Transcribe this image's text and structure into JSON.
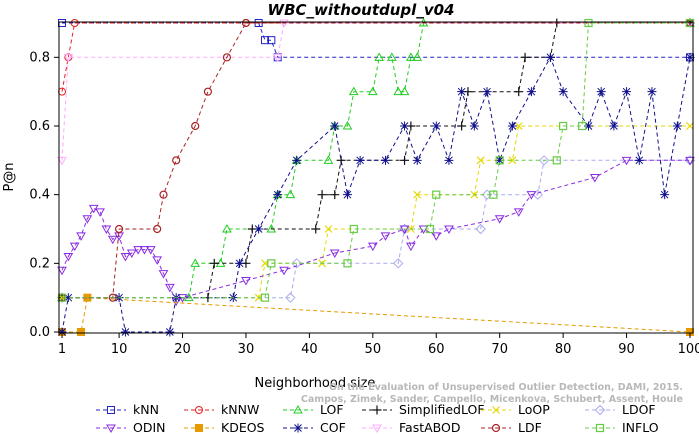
{
  "chart_data": {
    "type": "line",
    "title": "WBC_withoutdupl_v04",
    "xlabel": "Neighborhood size",
    "ylabel": "P@n",
    "xlim": [
      1,
      100
    ],
    "ylim": [
      0,
      0.9
    ],
    "xticks": [
      1,
      10,
      20,
      30,
      40,
      50,
      60,
      70,
      80,
      90,
      100
    ],
    "yticks": [
      0.0,
      0.2,
      0.4,
      0.6,
      0.8
    ],
    "ytick_labels": [
      "0.0",
      "0.2",
      "0.4",
      "0.6",
      "0.8"
    ],
    "grid": false,
    "legend_position": "bottom",
    "credit_lines": [
      "Campos, Zimek, Sander, Campello, Micenkova, Schubert, Assent, Houle",
      "On the Evaluation of Unsupervised Outlier Detection, DAMI, 2015."
    ],
    "series": [
      {
        "name": "kNN",
        "color": "#2323c8",
        "marker": "square",
        "points": [
          [
            1,
            0.9
          ],
          [
            32,
            0.9
          ],
          [
            33,
            0.85
          ],
          [
            34,
            0.85
          ],
          [
            35,
            0.8
          ],
          [
            100,
            0.8
          ]
        ]
      },
      {
        "name": "kNNW",
        "color": "#e32222",
        "marker": "circle",
        "points": [
          [
            1,
            0.7
          ],
          [
            2,
            0.8
          ],
          [
            3,
            0.9
          ],
          [
            100,
            0.9
          ]
        ]
      },
      {
        "name": "LOF",
        "color": "#22cc22",
        "marker": "triangle-up",
        "points": [
          [
            1,
            0.1
          ],
          [
            21,
            0.1
          ],
          [
            22,
            0.2
          ],
          [
            26,
            0.2
          ],
          [
            27,
            0.3
          ],
          [
            34,
            0.3
          ],
          [
            35,
            0.4
          ],
          [
            37,
            0.4
          ],
          [
            38,
            0.5
          ],
          [
            43,
            0.5
          ],
          [
            44,
            0.6
          ],
          [
            46,
            0.6
          ],
          [
            47,
            0.7
          ],
          [
            50,
            0.7
          ],
          [
            51,
            0.8
          ],
          [
            53,
            0.8
          ],
          [
            54,
            0.7
          ],
          [
            55,
            0.7
          ],
          [
            56,
            0.8
          ],
          [
            57,
            0.8
          ],
          [
            58,
            0.9
          ],
          [
            100,
            0.9
          ]
        ]
      },
      {
        "name": "SimplifiedLOF",
        "color": "#111111",
        "marker": "plus",
        "points": [
          [
            1,
            0.1
          ],
          [
            24,
            0.1
          ],
          [
            25,
            0.2
          ],
          [
            30,
            0.2
          ],
          [
            31,
            0.3
          ],
          [
            41,
            0.3
          ],
          [
            42,
            0.4
          ],
          [
            44,
            0.4
          ],
          [
            45,
            0.5
          ],
          [
            55,
            0.5
          ],
          [
            56,
            0.6
          ],
          [
            64,
            0.6
          ],
          [
            65,
            0.7
          ],
          [
            73,
            0.7
          ],
          [
            74,
            0.8
          ],
          [
            78,
            0.8
          ],
          [
            79,
            0.9
          ],
          [
            100,
            0.9
          ]
        ]
      },
      {
        "name": "LoOP",
        "color": "#e6d800",
        "marker": "x",
        "points": [
          [
            1,
            0.1
          ],
          [
            32,
            0.1
          ],
          [
            33,
            0.2
          ],
          [
            42,
            0.2
          ],
          [
            43,
            0.3
          ],
          [
            56,
            0.3
          ],
          [
            57,
            0.4
          ],
          [
            66,
            0.4
          ],
          [
            67,
            0.5
          ],
          [
            72,
            0.5
          ],
          [
            73,
            0.6
          ],
          [
            100,
            0.6
          ]
        ]
      },
      {
        "name": "LDOF",
        "color": "#aaaaee",
        "marker": "diamond",
        "points": [
          [
            1,
            0.1
          ],
          [
            37,
            0.1
          ],
          [
            38,
            0.2
          ],
          [
            54,
            0.2
          ],
          [
            55,
            0.3
          ],
          [
            67,
            0.3
          ],
          [
            68,
            0.4
          ],
          [
            76,
            0.4
          ],
          [
            77,
            0.5
          ],
          [
            100,
            0.5
          ]
        ]
      },
      {
        "name": "ODIN",
        "color": "#8a2be2",
        "marker": "triangle-down",
        "points": [
          [
            1,
            0.18
          ],
          [
            2,
            0.22
          ],
          [
            3,
            0.25
          ],
          [
            4,
            0.28
          ],
          [
            5,
            0.33
          ],
          [
            6,
            0.36
          ],
          [
            7,
            0.35
          ],
          [
            8,
            0.3
          ],
          [
            9,
            0.27
          ],
          [
            10,
            0.28
          ],
          [
            11,
            0.22
          ],
          [
            12,
            0.23
          ],
          [
            13,
            0.24
          ],
          [
            14,
            0.24
          ],
          [
            15,
            0.24
          ],
          [
            16,
            0.21
          ],
          [
            17,
            0.17
          ],
          [
            18,
            0.13
          ],
          [
            19,
            0.09
          ],
          [
            20,
            0.1
          ],
          [
            30,
            0.15
          ],
          [
            36,
            0.18
          ],
          [
            44,
            0.23
          ],
          [
            50,
            0.25
          ],
          [
            52,
            0.28
          ],
          [
            55,
            0.3
          ],
          [
            56,
            0.25
          ],
          [
            58,
            0.3
          ],
          [
            60,
            0.28
          ],
          [
            62,
            0.3
          ],
          [
            70,
            0.33
          ],
          [
            73,
            0.35
          ],
          [
            75,
            0.4
          ],
          [
            85,
            0.45
          ],
          [
            90,
            0.5
          ],
          [
            100,
            0.5
          ]
        ]
      },
      {
        "name": "KDEOS",
        "color": "#e69a00",
        "marker": "square-filled",
        "points": [
          [
            1,
            0.0
          ],
          [
            4,
            0.0
          ],
          [
            5,
            0.1
          ],
          [
            100,
            0.0
          ]
        ]
      },
      {
        "name": "COF",
        "color": "#10108a",
        "marker": "asterisk",
        "points": [
          [
            1,
            0.0
          ],
          [
            2,
            0.1
          ],
          [
            10,
            0.1
          ],
          [
            11,
            0.0
          ],
          [
            18,
            0.0
          ],
          [
            19,
            0.1
          ],
          [
            28,
            0.1
          ],
          [
            29,
            0.2
          ],
          [
            32,
            0.3
          ],
          [
            35,
            0.4
          ],
          [
            38,
            0.5
          ],
          [
            44,
            0.6
          ],
          [
            46,
            0.4
          ],
          [
            48,
            0.5
          ],
          [
            52,
            0.5
          ],
          [
            55,
            0.6
          ],
          [
            57,
            0.5
          ],
          [
            60,
            0.6
          ],
          [
            62,
            0.5
          ],
          [
            64,
            0.7
          ],
          [
            66,
            0.6
          ],
          [
            68,
            0.7
          ],
          [
            70,
            0.5
          ],
          [
            72,
            0.6
          ],
          [
            75,
            0.7
          ],
          [
            78,
            0.8
          ],
          [
            80,
            0.7
          ],
          [
            84,
            0.6
          ],
          [
            86,
            0.7
          ],
          [
            88,
            0.6
          ],
          [
            90,
            0.7
          ],
          [
            92,
            0.5
          ],
          [
            94,
            0.7
          ],
          [
            96,
            0.4
          ],
          [
            98,
            0.6
          ],
          [
            100,
            0.8
          ]
        ]
      },
      {
        "name": "FastABOD",
        "color": "#ffaaff",
        "marker": "triangle-down",
        "points": [
          [
            1,
            0.5
          ],
          [
            2,
            0.8
          ],
          [
            35,
            0.8
          ],
          [
            36,
            0.9
          ],
          [
            100,
            0.9
          ]
        ]
      },
      {
        "name": "LDF",
        "color": "#aa2222",
        "marker": "circle-filled",
        "points": [
          [
            1,
            0.1
          ],
          [
            9,
            0.1
          ],
          [
            10,
            0.3
          ],
          [
            16,
            0.3
          ],
          [
            17,
            0.4
          ],
          [
            19,
            0.5
          ],
          [
            22,
            0.6
          ],
          [
            24,
            0.7
          ],
          [
            27,
            0.8
          ],
          [
            30,
            0.9
          ],
          [
            100,
            0.9
          ]
        ]
      },
      {
        "name": "INFLO",
        "color": "#66cc44",
        "marker": "hatched-square",
        "points": [
          [
            1,
            0.1
          ],
          [
            33,
            0.1
          ],
          [
            34,
            0.2
          ],
          [
            46,
            0.2
          ],
          [
            47,
            0.3
          ],
          [
            59,
            0.3
          ],
          [
            60,
            0.4
          ],
          [
            69,
            0.4
          ],
          [
            70,
            0.5
          ],
          [
            79,
            0.5
          ],
          [
            80,
            0.6
          ],
          [
            83,
            0.6
          ],
          [
            84,
            0.9
          ],
          [
            100,
            0.9
          ]
        ]
      }
    ]
  }
}
